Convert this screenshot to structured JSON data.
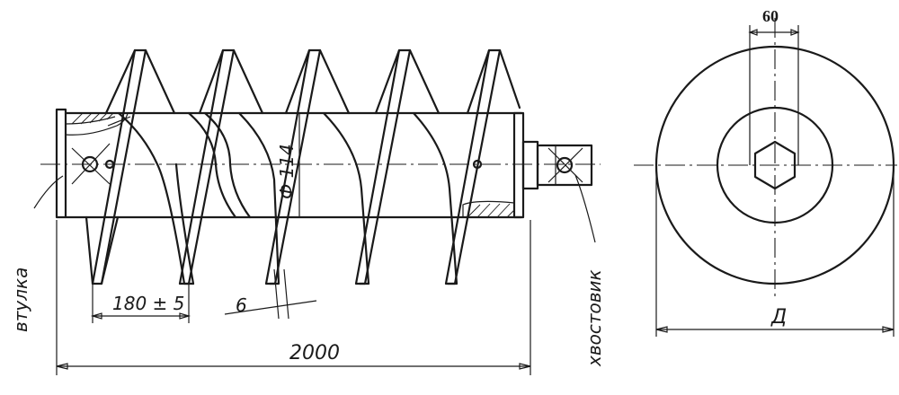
{
  "labels": {
    "sleeve": "втулка",
    "shank": "хвостовик",
    "pitch": "180 ± 5",
    "thickness": "6",
    "diameter": "Ф 114",
    "length": "2000",
    "slot_width": "60",
    "outer_diameter": "Д"
  }
}
